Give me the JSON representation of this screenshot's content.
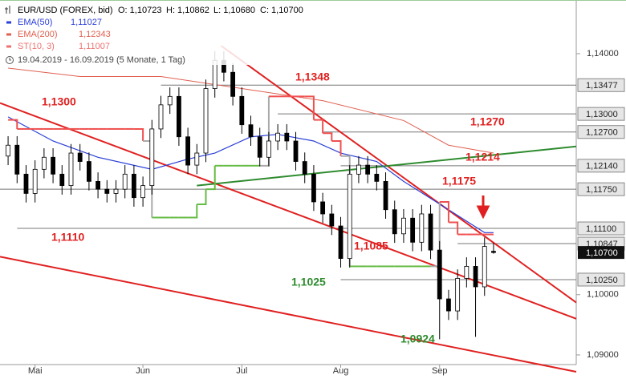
{
  "chart_data": {
    "type": "candlestick",
    "legend_header": {
      "symbol": "EUR/USD (FOREX, bid)",
      "stats": [
        "O: 1,10723",
        "H: 1,10862",
        "L: 1,10680",
        "C: 1,10700"
      ],
      "range": "19.04.2019 - 16.09.2019 (5 Monate, 1 Tag)"
    },
    "categories": [
      null,
      null,
      null,
      "Mai",
      null,
      null,
      null,
      null,
      null,
      null,
      null,
      null,
      null,
      null,
      null,
      "Jun",
      null,
      null,
      null,
      null,
      null,
      null,
      null,
      null,
      null,
      null,
      "Jul",
      null,
      null,
      null,
      null,
      null,
      null,
      null,
      null,
      null,
      null,
      "Aug",
      null,
      null,
      null,
      null,
      null,
      null,
      null,
      null,
      null,
      null,
      "Sep",
      null,
      null,
      null,
      null,
      null,
      null
    ],
    "open": [
      1.123,
      1.1248,
      1.12,
      1.1168,
      1.1208,
      1.1228,
      1.12,
      1.1181,
      1.1235,
      1.1221,
      1.1188,
      1.1175,
      1.1168,
      1.1175,
      1.12,
      1.1161,
      1.1181,
      1.1275,
      1.1315,
      1.1329,
      1.1262,
      1.1215,
      1.1235,
      1.1342,
      1.1389,
      1.1369,
      1.1329,
      1.1282,
      1.1262,
      1.1228,
      1.1255,
      1.1268,
      1.1255,
      1.1221,
      1.12,
      1.1154,
      1.1134,
      1.1114,
      1.106,
      1.12,
      1.1215,
      1.12,
      1.1188,
      1.1141,
      1.1101,
      1.1127,
      1.1087,
      1.1134,
      1.1074,
      1.0993,
      1.0973,
      1.1027,
      1.1047,
      1.1013,
      1.1072
    ],
    "high": [
      1.1263,
      1.1263,
      1.1215,
      1.1223,
      1.1243,
      1.1243,
      1.1215,
      1.125,
      1.125,
      1.1236,
      1.1203,
      1.119,
      1.119,
      1.1215,
      1.1215,
      1.1196,
      1.129,
      1.133,
      1.1344,
      1.1344,
      1.1277,
      1.125,
      1.1357,
      1.1404,
      1.1404,
      1.1384,
      1.1344,
      1.1297,
      1.1277,
      1.127,
      1.1283,
      1.1283,
      1.127,
      1.1236,
      1.1215,
      1.1169,
      1.1149,
      1.1129,
      1.1215,
      1.123,
      1.123,
      1.1215,
      1.1203,
      1.1156,
      1.1142,
      1.1142,
      1.1149,
      1.1149,
      1.1089,
      1.1008,
      1.1042,
      1.1062,
      1.1062,
      1.1095,
      1.1086
    ],
    "low": [
      1.1215,
      1.1185,
      1.1153,
      1.1153,
      1.1193,
      1.1185,
      1.1166,
      1.1166,
      1.1206,
      1.1173,
      1.116,
      1.1153,
      1.1153,
      1.116,
      1.1146,
      1.1146,
      1.1166,
      1.126,
      1.13,
      1.1247,
      1.12,
      1.12,
      1.122,
      1.1327,
      1.1354,
      1.1314,
      1.1267,
      1.1247,
      1.1213,
      1.1213,
      1.124,
      1.124,
      1.1206,
      1.1185,
      1.1139,
      1.1119,
      1.1099,
      1.1045,
      1.1045,
      1.1185,
      1.1185,
      1.1173,
      1.1126,
      1.1086,
      1.1086,
      1.1072,
      1.1072,
      1.1059,
      1.0926,
      1.0958,
      1.0958,
      1.1012,
      1.093,
      1.0998,
      1.1068
    ],
    "close": [
      1.1248,
      1.12,
      1.1168,
      1.1208,
      1.1228,
      1.12,
      1.1181,
      1.1235,
      1.1221,
      1.1188,
      1.1175,
      1.1168,
      1.1175,
      1.12,
      1.1161,
      1.1181,
      1.1275,
      1.1315,
      1.1329,
      1.1262,
      1.1215,
      1.1235,
      1.1342,
      1.1389,
      1.1369,
      1.1329,
      1.1282,
      1.1262,
      1.1228,
      1.1255,
      1.1268,
      1.1255,
      1.1221,
      1.12,
      1.1154,
      1.1134,
      1.1114,
      1.106,
      1.12,
      1.1215,
      1.12,
      1.1188,
      1.1141,
      1.1101,
      1.1127,
      1.1087,
      1.1134,
      1.1074,
      1.0993,
      1.0973,
      1.1027,
      1.1047,
      1.1013,
      1.108,
      1.107
    ],
    "up_color": "#ffffff",
    "down_color": "#000000",
    "series": [
      {
        "name": "EMA(50)",
        "legend_value": "1,11027",
        "color": "#2a3fd6",
        "x": [
          0,
          5,
          10,
          16,
          20,
          23,
          27,
          30,
          34,
          37,
          41,
          44,
          49,
          53,
          54
        ],
        "values": [
          1.1295,
          1.1255,
          1.1228,
          1.1208,
          1.1225,
          1.1235,
          1.1262,
          1.1266,
          1.1255,
          1.1235,
          1.1221,
          1.1188,
          1.1141,
          1.1103,
          1.1103
        ]
      },
      {
        "name": "EMA(200)",
        "legend_value": "1,12343",
        "color": "#e06050",
        "x": [
          0,
          8,
          17,
          26,
          35,
          44,
          49,
          54
        ],
        "values": [
          1.1376,
          1.1362,
          1.1362,
          1.1342,
          1.1322,
          1.1289,
          1.1248,
          1.1235
        ]
      },
      {
        "name": "ST(10, 3)",
        "legend_value": "1,11007",
        "color": "#f07070",
        "x": [
          0,
          1,
          2,
          3,
          4,
          5,
          6,
          7,
          8,
          9,
          10,
          11,
          12,
          13,
          14,
          15,
          16,
          17,
          18,
          19,
          20,
          21,
          22,
          23,
          24,
          25,
          26,
          27,
          28,
          29,
          30,
          31,
          32,
          33,
          34,
          35,
          36,
          37,
          38,
          39,
          40,
          41,
          42,
          43,
          44,
          45,
          46,
          47,
          48,
          49,
          50,
          51,
          52,
          53,
          54
        ],
        "values": [
          1.129,
          1.1275,
          1.1275,
          1.1275,
          1.1275,
          1.1275,
          1.1275,
          1.1275,
          1.1275,
          1.1275,
          1.1275,
          1.1275,
          1.1275,
          1.1275,
          1.1275,
          1.1255,
          1.1128,
          1.1128,
          1.1128,
          1.1128,
          1.1128,
          1.115,
          1.1175,
          1.1214,
          1.1214,
          1.1214,
          1.1214,
          1.1214,
          1.1214,
          1.1329,
          1.1329,
          1.1329,
          1.1329,
          1.1329,
          1.129,
          1.1268,
          1.1255,
          1.123,
          1.1047,
          1.1047,
          1.1047,
          1.1047,
          1.1047,
          1.1047,
          1.1047,
          1.1047,
          1.1047,
          1.1047,
          1.1154,
          1.112,
          1.11,
          1.11,
          1.11,
          1.11,
          1.11
        ],
        "segment_colors": [
          "#f05050",
          "#f05050",
          "#f05050",
          "#f05050",
          "#f05050",
          "#f05050",
          "#f05050",
          "#f05050",
          "#f05050",
          "#f05050",
          "#f05050",
          "#f05050",
          "#f05050",
          "#f05050",
          "#f05050",
          "#f05050",
          "#66bb44",
          "#66bb44",
          "#66bb44",
          "#66bb44",
          "#66bb44",
          "#66bb44",
          "#66bb44",
          "#66bb44",
          "#66bb44",
          "#66bb44",
          "#66bb44",
          "#66bb44",
          "#66bb44",
          "#f05050",
          "#f05050",
          "#f05050",
          "#f05050",
          "#f05050",
          "#f05050",
          "#f05050",
          "#f05050",
          "#f05050",
          "#66bb44",
          "#66bb44",
          "#66bb44",
          "#66bb44",
          "#66bb44",
          "#66bb44",
          "#66bb44",
          "#66bb44",
          "#66bb44",
          "#66bb44",
          "#f05050",
          "#f05050",
          "#f05050",
          "#f05050",
          "#f05050",
          "#f05050",
          "#f05050"
        ]
      }
    ],
    "trendlines": [
      {
        "color": "#e02020",
        "x": [
          -0.9,
          63.2
        ],
        "values": [
          1.1318,
          1.096
        ]
      },
      {
        "color": "#e02020",
        "x": [
          23.7,
          63.2
        ],
        "values": [
          1.1413,
          1.0987
        ]
      },
      {
        "color": "#e02020",
        "x": [
          -0.9,
          63.2
        ],
        "values": [
          1.1063,
          1.0872
        ]
      },
      {
        "color": "#2e8b2e",
        "x": [
          21,
          63.2
        ],
        "values": [
          1.1181,
          1.1246
        ]
      }
    ],
    "levels": [
      {
        "value": 1.13477,
        "label": "1,13477",
        "start": 17
      },
      {
        "value": 1.13,
        "label": "1,13000",
        "start": 30
      },
      {
        "value": 1.127,
        "label": "1,12700",
        "start": 35
      },
      {
        "value": 1.1214,
        "label": "1,12140",
        "start": 37
      },
      {
        "value": 1.1175,
        "label": "1,11750",
        "start": -0.9
      },
      {
        "value": 1.111,
        "label": "1,11100",
        "start": 1
      },
      {
        "value": 1.10847,
        "label": "1,10847",
        "start": 50
      },
      {
        "value": 1.1025,
        "label": "1,10250",
        "start": 37
      }
    ],
    "last_price": {
      "value": 1.107,
      "label": "1,10700"
    },
    "annotations": [
      {
        "text": "1,1348",
        "color": "#e02020"
      },
      {
        "text": "1,1300",
        "color": "#e02020"
      },
      {
        "text": "1,1270",
        "color": "#e02020"
      },
      {
        "text": "1,1214",
        "color": "#e02020"
      },
      {
        "text": "1,1175",
        "color": "#e02020"
      },
      {
        "text": "1,1110",
        "color": "#e02020"
      },
      {
        "text": "1,1085",
        "color": "#e02020"
      },
      {
        "text": "1,1025",
        "color": "#2e8b2e"
      },
      {
        "text": "1,0924",
        "color": "#2e8b2e"
      }
    ],
    "xlim": [
      -0.9,
      63.2
    ],
    "ylim": [
      1.0884,
      1.1489
    ],
    "yticks": [
      {
        "value": 1.14,
        "label": "1,14000"
      },
      {
        "value": 1.1,
        "label": "1,10000"
      },
      {
        "value": 1.09,
        "label": "1,09000"
      }
    ]
  }
}
